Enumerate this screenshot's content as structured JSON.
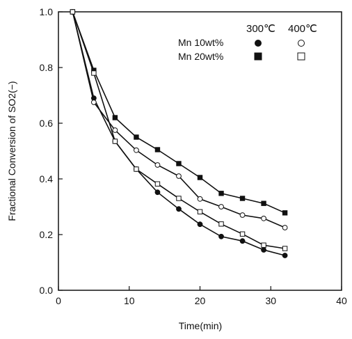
{
  "chart_data": {
    "type": "line",
    "xlabel": "Time(min)",
    "ylabel": "Fractional Conversion of SO2(−)",
    "xlim": [
      0,
      40
    ],
    "ylim": [
      0,
      1.0
    ],
    "xticks": [
      "0",
      "10",
      "20",
      "30",
      "40"
    ],
    "yticks": [
      "0.0",
      "0.2",
      "0.4",
      "0.6",
      "0.8",
      "1.0"
    ],
    "grid": false,
    "legend": {
      "placement": "top-right",
      "columns": [
        "300℃",
        "400℃"
      ],
      "rows": [
        "Mn 10wt%",
        "Mn 20wt%"
      ]
    },
    "x": [
      2,
      5,
      8,
      11,
      14,
      17,
      20,
      23,
      26,
      29,
      32
    ],
    "series": [
      {
        "name": "Mn 10wt% 300℃",
        "marker": "filled-circle",
        "values": [
          1.0,
          0.69,
          0.535,
          0.435,
          0.352,
          0.292,
          0.237,
          0.193,
          0.177,
          0.145,
          0.125
        ]
      },
      {
        "name": "Mn 20wt% 300℃",
        "marker": "filled-square",
        "values": [
          1.0,
          0.79,
          0.62,
          0.55,
          0.505,
          0.455,
          0.405,
          0.348,
          0.33,
          0.312,
          0.278
        ]
      },
      {
        "name": "Mn 10wt% 400℃",
        "marker": "open-circle",
        "values": [
          1.0,
          0.675,
          0.575,
          0.503,
          0.45,
          0.41,
          0.328,
          0.3,
          0.27,
          0.258,
          0.225
        ]
      },
      {
        "name": "Mn 20wt% 400℃",
        "marker": "open-square",
        "values": [
          1.0,
          0.78,
          0.535,
          0.435,
          0.382,
          0.33,
          0.282,
          0.238,
          0.202,
          0.162,
          0.15
        ]
      }
    ]
  }
}
